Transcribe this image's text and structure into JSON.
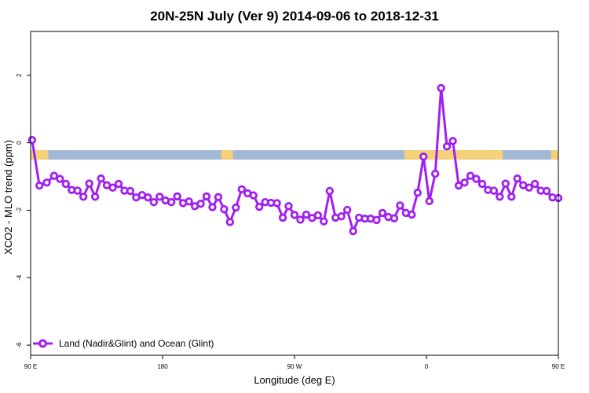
{
  "chart_data": {
    "type": "line",
    "title": "20N-25N July (Ver 9)   2014-09-06 to 2018-12-31",
    "xlabel": "Longitude (deg E)",
    "ylabel": "XCO2 - MLO trend (ppm)",
    "xlim": [
      0,
      360
    ],
    "ylim": [
      -6.3,
      3.3
    ],
    "x_ticks": [
      {
        "value": 0,
        "label": "90 E"
      },
      {
        "value": 90,
        "label": "180"
      },
      {
        "value": 180,
        "label": "90 W"
      },
      {
        "value": 270,
        "label": "0"
      },
      {
        "value": 360,
        "label": "90 E"
      },
      {
        "value": 450,
        "label": "180"
      }
    ],
    "y_ticks": [
      {
        "value": 2,
        "label": "2"
      },
      {
        "value": 0,
        "label": "0"
      },
      {
        "value": -2,
        "label": "-2"
      },
      {
        "value": -4,
        "label": "-4"
      },
      {
        "value": -6,
        "label": "-6"
      }
    ],
    "grid": false,
    "legend_position": "bottom-left",
    "surface_band": {
      "y_range": [
        -0.5,
        -0.22
      ],
      "ocean_color": "#a3b8d4",
      "land_color": "#f5d27a",
      "land_segments": [
        [
          0,
          12
        ],
        [
          130,
          138
        ],
        [
          255,
          322
        ],
        [
          355,
          360
        ]
      ]
    },
    "series": [
      {
        "name": "Land (Nadir&Glint) and Ocean (Glint)",
        "color": "#a020f0",
        "x": [
          1,
          6,
          11,
          16,
          20,
          24,
          28,
          32,
          36,
          40,
          44,
          48,
          52,
          56,
          60,
          64,
          68,
          72,
          76,
          80,
          84,
          88,
          92,
          96,
          100,
          104,
          108,
          112,
          116,
          120,
          124,
          128,
          132,
          136,
          140,
          144,
          148,
          152,
          156,
          160,
          164,
          168,
          172,
          176,
          180,
          184,
          188,
          192,
          196,
          200,
          204,
          208,
          212,
          216,
          220,
          224,
          228,
          232,
          236,
          240,
          244,
          248,
          252,
          256,
          260,
          264,
          268,
          272,
          276,
          280,
          284,
          288,
          292,
          296,
          300,
          304,
          308,
          312,
          316,
          320,
          324,
          328,
          332,
          336,
          340,
          344,
          348,
          352,
          356,
          360
        ],
        "y": [
          0.08,
          -1.27,
          -1.18,
          -0.98,
          -1.07,
          -1.22,
          -1.4,
          -1.42,
          -1.6,
          -1.21,
          -1.6,
          -1.06,
          -1.26,
          -1.33,
          -1.22,
          -1.42,
          -1.43,
          -1.62,
          -1.55,
          -1.62,
          -1.76,
          -1.6,
          -1.71,
          -1.76,
          -1.59,
          -1.79,
          -1.74,
          -1.88,
          -1.81,
          -1.59,
          -1.91,
          -1.61,
          -1.97,
          -2.35,
          -1.92,
          -1.38,
          -1.5,
          -1.56,
          -1.9,
          -1.76,
          -1.78,
          -1.79,
          -2.22,
          -1.88,
          -2.14,
          -2.28,
          -2.13,
          -2.23,
          -2.15,
          -2.33,
          -1.43,
          -2.22,
          -2.18,
          -1.99,
          -2.62,
          -2.22,
          -2.25,
          -2.25,
          -2.29,
          -2.08,
          -2.2,
          -2.24,
          -1.86,
          -2.08,
          -2.13,
          -1.48,
          -0.41,
          -1.73,
          -0.92,
          1.62,
          -0.11,
          0.05,
          -1.27,
          -1.18,
          -0.98,
          -1.07,
          -1.22,
          -1.4,
          -1.42,
          -1.6,
          -1.21,
          -1.6,
          -1.06,
          -1.26,
          -1.33,
          -1.22,
          -1.42,
          -1.43,
          -1.62,
          -1.64
        ]
      }
    ]
  }
}
